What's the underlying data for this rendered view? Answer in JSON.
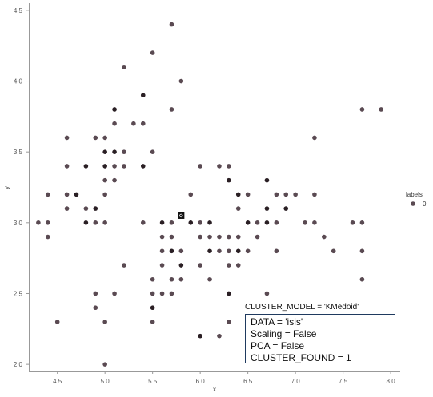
{
  "chart_data": {
    "type": "scatter",
    "title": "",
    "xlabel": "x",
    "ylabel": "y",
    "xlim": [
      4.2,
      8.1
    ],
    "ylim": [
      1.95,
      4.55
    ],
    "xticks": [
      "4.5",
      "5.0",
      "5.5",
      "6.0",
      "6.5",
      "7.0",
      "7.5",
      "8.0"
    ],
    "yticks": [
      "2.0",
      "2.5",
      "3.0",
      "3.5",
      "4.0",
      "4.5"
    ],
    "grid": false,
    "legend": {
      "title": "labels",
      "entries": [
        "0"
      ],
      "placement": "right",
      "color": "#5a4a52"
    },
    "point_color": "#5a4a52",
    "dense_color": "#2a1f24",
    "medoid": {
      "x": 5.8,
      "y": 3.05,
      "color": "#111111"
    },
    "points": [
      [
        5.1,
        3.5
      ],
      [
        4.9,
        3.0
      ],
      [
        4.7,
        3.2
      ],
      [
        4.6,
        3.1
      ],
      [
        5.0,
        3.6
      ],
      [
        5.4,
        3.9
      ],
      [
        4.6,
        3.4
      ],
      [
        5.0,
        3.4
      ],
      [
        4.4,
        2.9
      ],
      [
        4.9,
        3.1
      ],
      [
        5.4,
        3.7
      ],
      [
        4.8,
        3.4
      ],
      [
        4.8,
        3.0
      ],
      [
        4.3,
        3.0
      ],
      [
        5.8,
        4.0
      ],
      [
        5.7,
        4.4
      ],
      [
        5.4,
        3.9
      ],
      [
        5.1,
        3.5
      ],
      [
        5.7,
        3.8
      ],
      [
        5.1,
        3.8
      ],
      [
        5.4,
        3.4
      ],
      [
        5.1,
        3.7
      ],
      [
        4.6,
        3.6
      ],
      [
        5.1,
        3.3
      ],
      [
        4.8,
        3.4
      ],
      [
        5.0,
        3.0
      ],
      [
        5.0,
        3.4
      ],
      [
        5.2,
        3.5
      ],
      [
        5.2,
        3.4
      ],
      [
        4.7,
        3.2
      ],
      [
        4.8,
        3.1
      ],
      [
        5.4,
        3.4
      ],
      [
        5.2,
        4.1
      ],
      [
        5.5,
        4.2
      ],
      [
        4.9,
        3.1
      ],
      [
        5.0,
        3.2
      ],
      [
        5.5,
        3.5
      ],
      [
        4.9,
        3.6
      ],
      [
        4.4,
        3.0
      ],
      [
        5.1,
        3.4
      ],
      [
        5.0,
        3.5
      ],
      [
        4.5,
        2.3
      ],
      [
        4.4,
        3.2
      ],
      [
        5.0,
        3.5
      ],
      [
        5.1,
        3.8
      ],
      [
        4.8,
        3.0
      ],
      [
        5.1,
        3.8
      ],
      [
        4.6,
        3.2
      ],
      [
        5.3,
        3.7
      ],
      [
        5.0,
        3.3
      ],
      [
        7.0,
        3.2
      ],
      [
        6.4,
        3.2
      ],
      [
        6.9,
        3.1
      ],
      [
        5.5,
        2.3
      ],
      [
        6.5,
        2.8
      ],
      [
        5.7,
        2.8
      ],
      [
        6.3,
        3.3
      ],
      [
        4.9,
        2.4
      ],
      [
        6.6,
        2.9
      ],
      [
        5.2,
        2.7
      ],
      [
        5.0,
        2.0
      ],
      [
        5.9,
        3.0
      ],
      [
        6.0,
        2.2
      ],
      [
        6.1,
        2.9
      ],
      [
        5.6,
        2.9
      ],
      [
        6.7,
        3.1
      ],
      [
        5.6,
        3.0
      ],
      [
        5.8,
        2.7
      ],
      [
        6.2,
        2.2
      ],
      [
        5.6,
        2.5
      ],
      [
        5.9,
        3.2
      ],
      [
        6.1,
        2.8
      ],
      [
        6.3,
        2.5
      ],
      [
        6.1,
        2.8
      ],
      [
        6.4,
        2.9
      ],
      [
        6.6,
        3.0
      ],
      [
        6.8,
        2.8
      ],
      [
        6.7,
        3.0
      ],
      [
        6.0,
        2.9
      ],
      [
        5.7,
        2.6
      ],
      [
        5.5,
        2.4
      ],
      [
        5.5,
        2.4
      ],
      [
        5.8,
        2.7
      ],
      [
        6.0,
        2.7
      ],
      [
        5.4,
        3.0
      ],
      [
        6.0,
        3.4
      ],
      [
        6.7,
        3.1
      ],
      [
        6.3,
        2.3
      ],
      [
        5.6,
        3.0
      ],
      [
        5.5,
        2.5
      ],
      [
        5.5,
        2.6
      ],
      [
        6.1,
        3.0
      ],
      [
        5.8,
        2.6
      ],
      [
        5.0,
        2.3
      ],
      [
        5.6,
        2.7
      ],
      [
        5.7,
        3.0
      ],
      [
        5.7,
        2.9
      ],
      [
        6.2,
        2.9
      ],
      [
        5.1,
        2.5
      ],
      [
        5.7,
        2.8
      ],
      [
        6.3,
        3.3
      ],
      [
        5.8,
        2.7
      ],
      [
        7.1,
        3.0
      ],
      [
        6.3,
        2.9
      ],
      [
        6.5,
        3.0
      ],
      [
        7.6,
        3.0
      ],
      [
        4.9,
        2.5
      ],
      [
        7.3,
        2.9
      ],
      [
        6.7,
        2.5
      ],
      [
        7.2,
        3.6
      ],
      [
        6.5,
        3.2
      ],
      [
        6.4,
        2.7
      ],
      [
        6.8,
        3.0
      ],
      [
        5.7,
        2.5
      ],
      [
        5.8,
        2.8
      ],
      [
        6.4,
        3.2
      ],
      [
        6.5,
        3.0
      ],
      [
        7.7,
        3.8
      ],
      [
        7.7,
        2.6
      ],
      [
        6.0,
        2.2
      ],
      [
        6.9,
        3.2
      ],
      [
        5.6,
        2.8
      ],
      [
        7.7,
        2.8
      ],
      [
        6.3,
        2.7
      ],
      [
        6.7,
        3.3
      ],
      [
        7.2,
        3.2
      ],
      [
        6.2,
        2.8
      ],
      [
        6.1,
        3.0
      ],
      [
        6.4,
        2.8
      ],
      [
        7.2,
        3.0
      ],
      [
        7.4,
        2.8
      ],
      [
        7.9,
        3.8
      ],
      [
        6.4,
        2.8
      ],
      [
        6.3,
        2.8
      ],
      [
        6.1,
        2.6
      ],
      [
        7.7,
        3.0
      ],
      [
        6.3,
        3.4
      ],
      [
        6.4,
        3.1
      ],
      [
        6.0,
        3.0
      ],
      [
        6.9,
        3.1
      ],
      [
        6.7,
        3.1
      ],
      [
        6.9,
        3.1
      ],
      [
        5.8,
        2.7
      ],
      [
        6.8,
        3.2
      ],
      [
        6.7,
        3.3
      ],
      [
        6.7,
        3.0
      ],
      [
        6.3,
        2.5
      ],
      [
        6.5,
        3.0
      ],
      [
        6.2,
        3.4
      ],
      [
        5.9,
        3.0
      ]
    ]
  },
  "annotation": {
    "cluster_title": "CLUSTER_MODEL = 'KMedoid'",
    "lines": [
      "DATA = 'isis'",
      "Scaling = False",
      "PCA = False",
      "CLUSTER_FOUND = 1"
    ]
  }
}
